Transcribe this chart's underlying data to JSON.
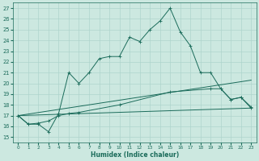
{
  "xlabel": "Humidex (Indice chaleur)",
  "xlim": [
    -0.5,
    23.5
  ],
  "ylim": [
    14.5,
    27.5
  ],
  "xticks": [
    0,
    1,
    2,
    3,
    4,
    5,
    6,
    7,
    8,
    9,
    10,
    11,
    12,
    13,
    14,
    15,
    16,
    17,
    18,
    19,
    20,
    21,
    22,
    23
  ],
  "yticks": [
    15,
    16,
    17,
    18,
    19,
    20,
    21,
    22,
    23,
    24,
    25,
    26,
    27
  ],
  "bg_color": "#cce8e0",
  "line_color": "#1a6b5a",
  "grid_color": "#aed4cc",
  "line1_x": [
    0,
    1,
    2,
    3,
    4,
    5,
    6,
    7,
    8,
    9,
    10,
    11,
    12,
    13,
    14,
    15,
    16,
    17,
    18,
    19,
    20,
    21,
    22,
    23
  ],
  "line1_y": [
    17.0,
    16.2,
    16.2,
    15.5,
    17.2,
    21.0,
    20.0,
    21.0,
    22.3,
    22.5,
    22.5,
    24.3,
    23.9,
    25.0,
    25.8,
    27.0,
    24.8,
    23.5,
    21.0,
    21.0,
    19.5,
    18.5,
    18.7,
    17.7
  ],
  "line2_x": [
    0,
    1,
    2,
    3,
    4,
    5,
    6,
    10,
    15,
    19,
    20,
    21,
    22,
    23
  ],
  "line2_y": [
    17.0,
    16.2,
    16.3,
    16.5,
    17.0,
    17.2,
    17.3,
    18.0,
    19.2,
    19.5,
    19.5,
    18.5,
    18.7,
    17.8
  ],
  "line3_x": [
    0,
    23
  ],
  "line3_y": [
    17.0,
    17.7
  ],
  "line4_x": [
    0,
    23
  ],
  "line4_y": [
    17.0,
    20.3
  ]
}
